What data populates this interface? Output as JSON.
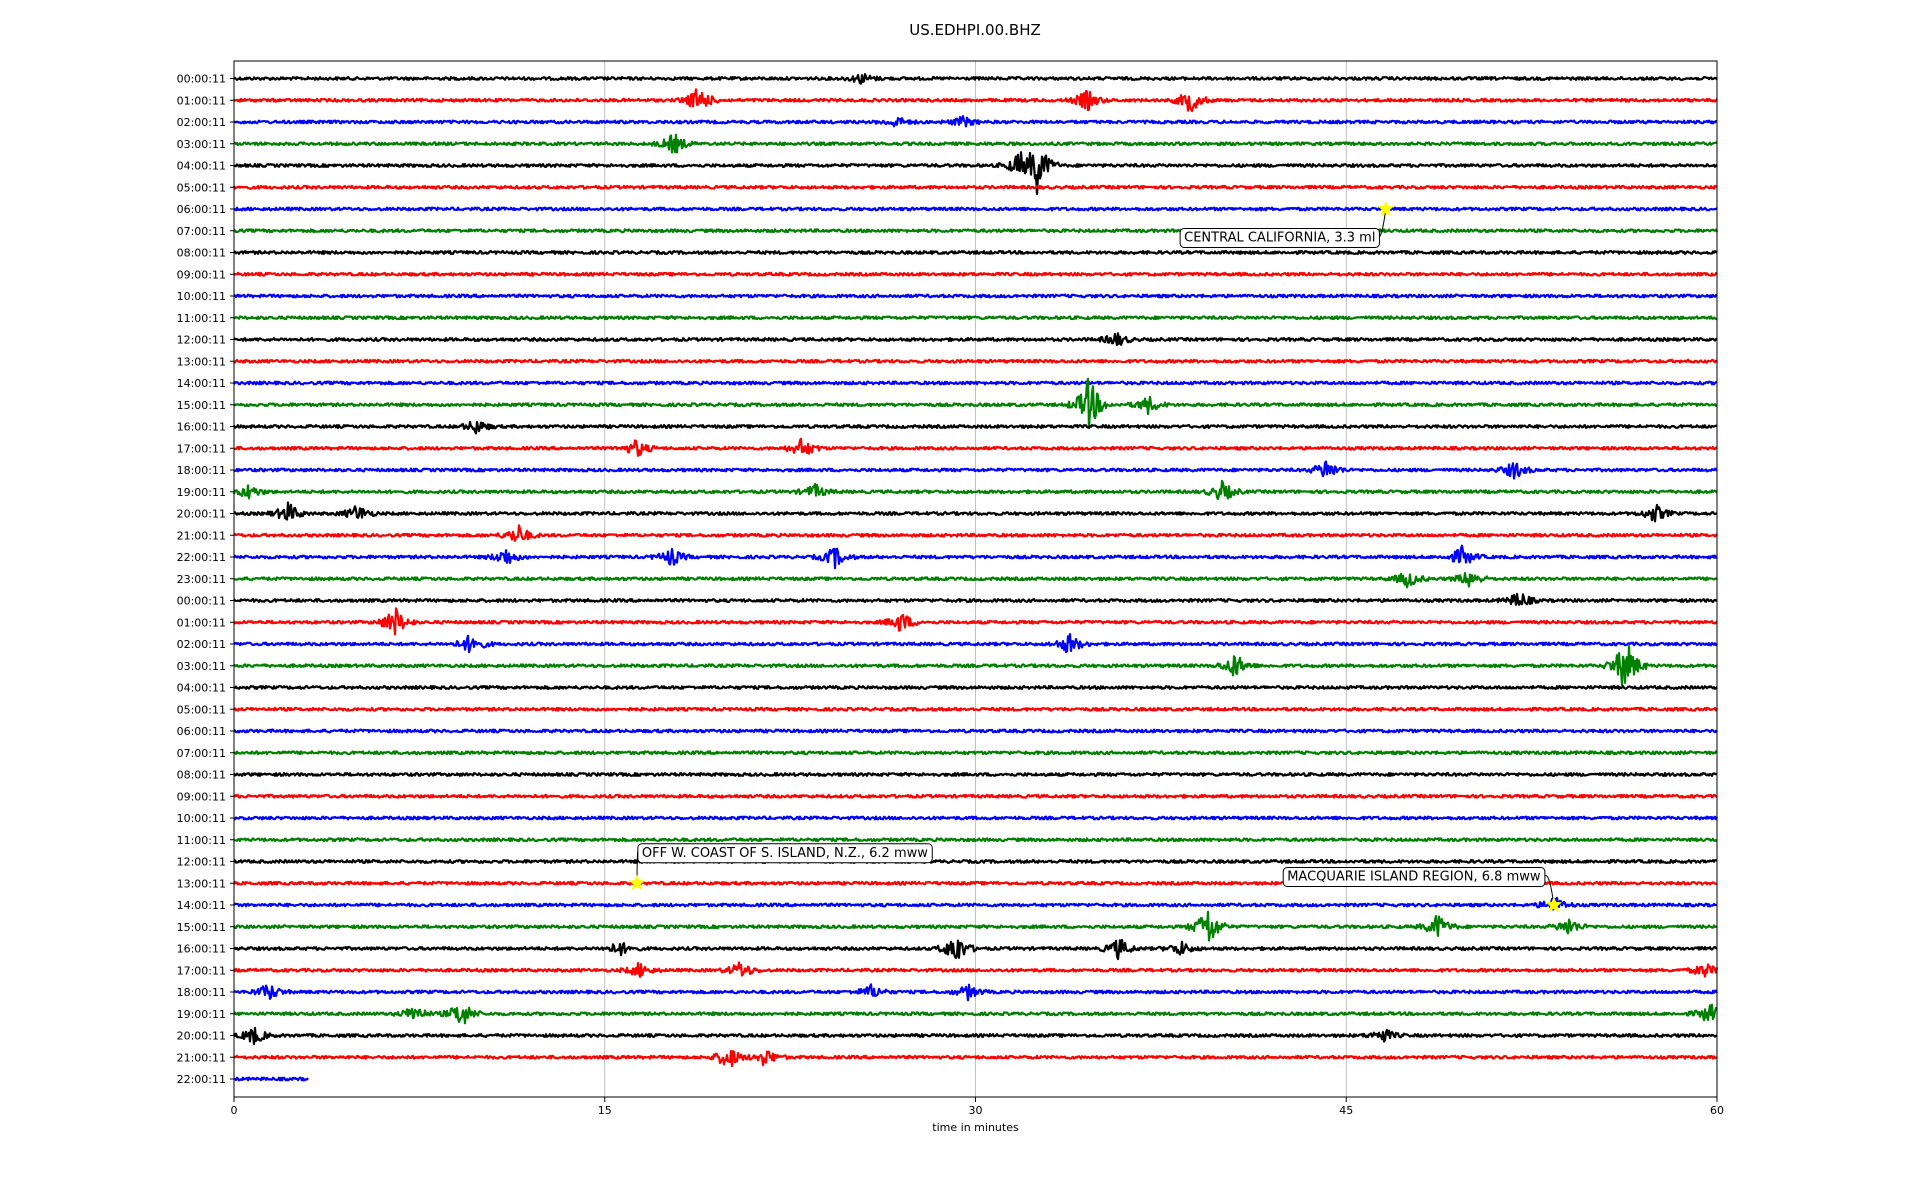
{
  "chart_data": {
    "type": "line",
    "title": "US.EDHPI.00.BHZ",
    "xlabel": "time in minutes",
    "xlim": [
      0,
      60
    ],
    "xticks": [
      0,
      15,
      30,
      45,
      60
    ],
    "grid": "vertical at x ticks",
    "row_colors": [
      "#000000",
      "#ff0000",
      "#0000ff",
      "#008000"
    ],
    "row_labels": [
      "00:00:11",
      "01:00:11",
      "02:00:11",
      "03:00:11",
      "04:00:11",
      "05:00:11",
      "06:00:11",
      "07:00:11",
      "08:00:11",
      "09:00:11",
      "10:00:11",
      "11:00:11",
      "12:00:11",
      "13:00:11",
      "14:00:11",
      "15:00:11",
      "16:00:11",
      "17:00:11",
      "18:00:11",
      "19:00:11",
      "20:00:11",
      "21:00:11",
      "22:00:11",
      "23:00:11",
      "00:00:11",
      "01:00:11",
      "02:00:11",
      "03:00:11",
      "04:00:11",
      "05:00:11",
      "06:00:11",
      "07:00:11",
      "08:00:11",
      "09:00:11",
      "10:00:11",
      "11:00:11",
      "12:00:11",
      "13:00:11",
      "14:00:11",
      "15:00:11",
      "16:00:11",
      "17:00:11",
      "18:00:11",
      "19:00:11",
      "20:00:11",
      "21:00:11",
      "22:00:11"
    ],
    "last_row_end_minute": 3,
    "bursts": [
      {
        "row": 0,
        "x": 25.4,
        "amp": 0.3
      },
      {
        "row": 1,
        "x": 18.8,
        "amp": 0.8
      },
      {
        "row": 1,
        "x": 34.5,
        "amp": 0.6
      },
      {
        "row": 1,
        "x": 38.7,
        "amp": 0.7
      },
      {
        "row": 2,
        "x": 26.8,
        "amp": 0.3
      },
      {
        "row": 2,
        "x": 29.5,
        "amp": 0.3
      },
      {
        "row": 3,
        "x": 17.8,
        "amp": 0.6
      },
      {
        "row": 4,
        "x": 31.8,
        "amp": 0.8
      },
      {
        "row": 4,
        "x": 32.5,
        "amp": 1.6
      },
      {
        "row": 12,
        "x": 35.7,
        "amp": 0.4
      },
      {
        "row": 15,
        "x": 34.6,
        "amp": 1.6
      },
      {
        "row": 15,
        "x": 37.0,
        "amp": 0.5
      },
      {
        "row": 16,
        "x": 9.8,
        "amp": 0.4
      },
      {
        "row": 17,
        "x": 16.3,
        "amp": 0.5
      },
      {
        "row": 17,
        "x": 23.0,
        "amp": 0.6
      },
      {
        "row": 18,
        "x": 44.2,
        "amp": 0.6
      },
      {
        "row": 18,
        "x": 51.8,
        "amp": 0.5
      },
      {
        "row": 19,
        "x": 0.6,
        "amp": 0.4
      },
      {
        "row": 19,
        "x": 23.5,
        "amp": 0.4
      },
      {
        "row": 19,
        "x": 40.0,
        "amp": 0.6
      },
      {
        "row": 20,
        "x": 2.2,
        "amp": 0.6
      },
      {
        "row": 20,
        "x": 5.0,
        "amp": 0.5
      },
      {
        "row": 20,
        "x": 57.5,
        "amp": 0.5
      },
      {
        "row": 21,
        "x": 11.5,
        "amp": 0.6
      },
      {
        "row": 22,
        "x": 11.0,
        "amp": 0.5
      },
      {
        "row": 22,
        "x": 17.7,
        "amp": 0.5
      },
      {
        "row": 22,
        "x": 24.3,
        "amp": 0.6
      },
      {
        "row": 22,
        "x": 49.7,
        "amp": 0.6
      },
      {
        "row": 23,
        "x": 47.5,
        "amp": 0.5
      },
      {
        "row": 23,
        "x": 50.0,
        "amp": 0.5
      },
      {
        "row": 24,
        "x": 52.0,
        "amp": 0.5
      },
      {
        "row": 25,
        "x": 6.5,
        "amp": 0.9
      },
      {
        "row": 25,
        "x": 27.0,
        "amp": 0.6
      },
      {
        "row": 26,
        "x": 9.6,
        "amp": 0.6
      },
      {
        "row": 26,
        "x": 33.8,
        "amp": 0.6
      },
      {
        "row": 27,
        "x": 40.5,
        "amp": 0.7
      },
      {
        "row": 27,
        "x": 56.3,
        "amp": 1.6
      },
      {
        "row": 38,
        "x": 53.4,
        "amp": 0.5
      },
      {
        "row": 39,
        "x": 39.4,
        "amp": 1.2
      },
      {
        "row": 39,
        "x": 48.7,
        "amp": 0.7
      },
      {
        "row": 39,
        "x": 54.0,
        "amp": 0.5
      },
      {
        "row": 40,
        "x": 15.6,
        "amp": 0.4
      },
      {
        "row": 40,
        "x": 29.2,
        "amp": 0.9
      },
      {
        "row": 40,
        "x": 35.8,
        "amp": 0.6
      },
      {
        "row": 40,
        "x": 38.3,
        "amp": 0.4
      },
      {
        "row": 41,
        "x": 16.4,
        "amp": 0.4
      },
      {
        "row": 41,
        "x": 20.5,
        "amp": 0.5
      },
      {
        "row": 41,
        "x": 59.5,
        "amp": 0.4
      },
      {
        "row": 42,
        "x": 1.4,
        "amp": 0.5
      },
      {
        "row": 42,
        "x": 25.8,
        "amp": 0.4
      },
      {
        "row": 42,
        "x": 29.7,
        "amp": 0.4
      },
      {
        "row": 43,
        "x": 7.3,
        "amp": 0.5
      },
      {
        "row": 43,
        "x": 9.2,
        "amp": 0.8
      },
      {
        "row": 43,
        "x": 59.7,
        "amp": 0.6
      },
      {
        "row": 44,
        "x": 0.8,
        "amp": 0.5
      },
      {
        "row": 44,
        "x": 46.5,
        "amp": 0.4
      },
      {
        "row": 45,
        "x": 20.0,
        "amp": 0.7
      },
      {
        "row": 45,
        "x": 21.5,
        "amp": 0.5
      }
    ],
    "annotations": [
      {
        "text": "CENTRAL CALIFORNIA, 3.3 ml",
        "row": 6,
        "x": 46.6
      },
      {
        "text": "OFF W. COAST OF S. ISLAND, N.Z., 6.2 mww",
        "row": 37,
        "x": 16.3
      },
      {
        "text": "MACQUARIE ISLAND REGION, 6.8 mww",
        "row": 38,
        "x": 53.4
      }
    ],
    "event_marker_color": "#ffff00"
  }
}
